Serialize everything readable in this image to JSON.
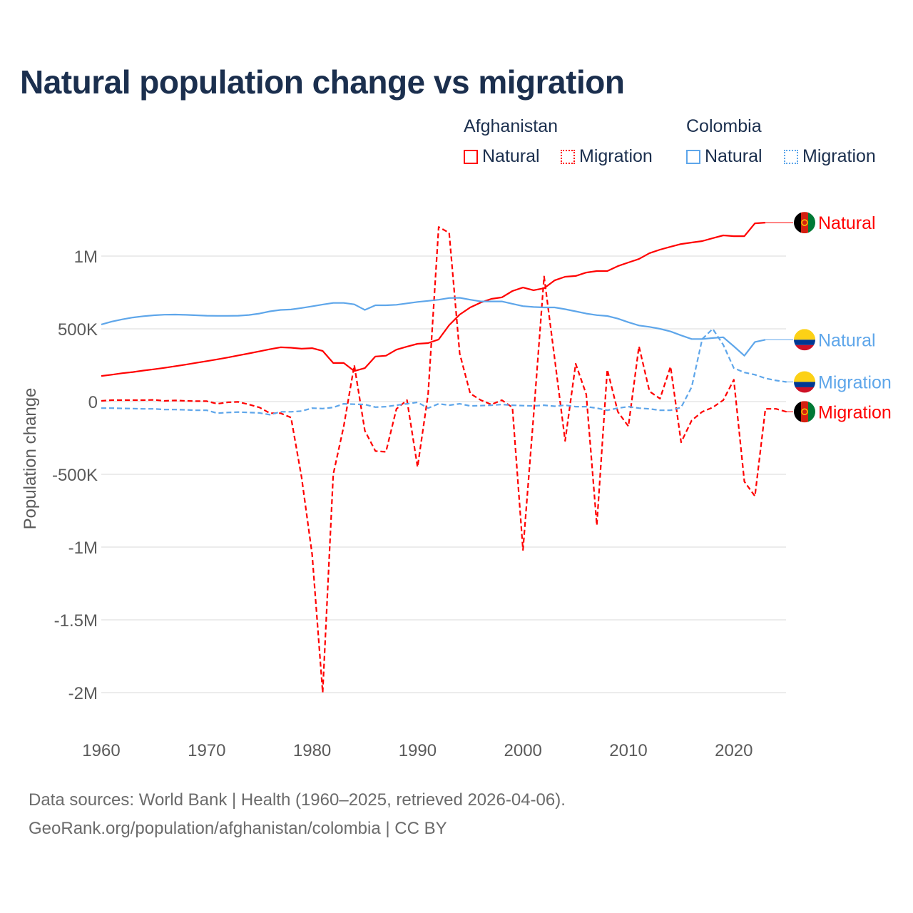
{
  "title": "Natural population change vs migration",
  "legend": {
    "groups": [
      {
        "name": "Afghanistan",
        "items": [
          "Natural",
          "Migration"
        ]
      },
      {
        "name": "Colombia",
        "items": [
          "Natural",
          "Migration"
        ]
      }
    ]
  },
  "colors": {
    "afghanistan": "#ff0000",
    "colombia": "#5ea6ea"
  },
  "footer": {
    "line1": "Data sources: World Bank | Health (1960–2025, retrieved 2026-04-06).",
    "line2": "GeoRank.org/population/afghanistan/colombia | CC BY"
  },
  "chart_data": {
    "type": "line",
    "title": "Natural population change vs migration",
    "xlabel": "",
    "ylabel": "Population change",
    "xlim": [
      1960,
      2025
    ],
    "ylim": [
      -2000000,
      1250000
    ],
    "x_ticks": [
      "1960",
      "1970",
      "1980",
      "1990",
      "2000",
      "2010",
      "2020"
    ],
    "y_ticks": [
      {
        "value": 1000000,
        "label": "1M"
      },
      {
        "value": 500000,
        "label": "500K"
      },
      {
        "value": 0,
        "label": "0"
      },
      {
        "value": -500000,
        "label": "-500K"
      },
      {
        "value": -1000000,
        "label": "-1M"
      },
      {
        "value": -1500000,
        "label": "-1.5M"
      },
      {
        "value": -2000000,
        "label": "-2M"
      }
    ],
    "grid": true,
    "legend_position": "top-right",
    "series": [
      {
        "name": "Afghanistan Natural",
        "country": "afghanistan",
        "end_label": "Natural",
        "style": "solid",
        "start_year": 1960,
        "values_millions": [
          0.176,
          0.185,
          0.195,
          0.203,
          0.213,
          0.222,
          0.232,
          0.243,
          0.254,
          0.266,
          0.278,
          0.29,
          0.303,
          0.317,
          0.331,
          0.345,
          0.36,
          0.373,
          0.37,
          0.363,
          0.367,
          0.348,
          0.265,
          0.265,
          0.21,
          0.23,
          0.31,
          0.315,
          0.357,
          0.378,
          0.397,
          0.402,
          0.427,
          0.525,
          0.598,
          0.647,
          0.681,
          0.706,
          0.716,
          0.76,
          0.784,
          0.765,
          0.779,
          0.833,
          0.858,
          0.863,
          0.887,
          0.897,
          0.897,
          0.931,
          0.956,
          0.98,
          1.02,
          1.044,
          1.064,
          1.083,
          1.093,
          1.103,
          1.123,
          1.142,
          1.137,
          1.137,
          1.225,
          1.23
        ]
      },
      {
        "name": "Afghanistan Migration",
        "country": "afghanistan",
        "end_label": "Migration",
        "style": "dashed",
        "start_year": 1960,
        "values_millions": [
          0.005,
          0.01,
          0.01,
          0.01,
          0.01,
          0.012,
          0.005,
          0.008,
          0.005,
          0.003,
          0.003,
          -0.015,
          -0.005,
          -0.002,
          -0.02,
          -0.04,
          -0.08,
          -0.08,
          -0.11,
          -0.52,
          -1.05,
          -2.0,
          -0.5,
          -0.17,
          0.25,
          -0.2,
          -0.34,
          -0.345,
          -0.05,
          0.01,
          -0.45,
          0.05,
          1.2,
          1.16,
          0.33,
          0.055,
          0.01,
          -0.02,
          0.01,
          -0.04,
          -1.02,
          -0.1,
          0.86,
          0.3,
          -0.27,
          0.26,
          0.05,
          -0.85,
          0.22,
          -0.07,
          -0.17,
          0.38,
          0.07,
          0.02,
          0.24,
          -0.28,
          -0.13,
          -0.07,
          -0.04,
          0.01,
          0.15,
          -0.55,
          -0.65,
          -0.05,
          -0.05,
          -0.07
        ]
      },
      {
        "name": "Colombia Natural",
        "country": "colombia",
        "end_label": "Natural",
        "style": "solid",
        "start_year": 1960,
        "values_millions": [
          0.53,
          0.55,
          0.565,
          0.578,
          0.587,
          0.593,
          0.597,
          0.598,
          0.596,
          0.593,
          0.59,
          0.589,
          0.589,
          0.59,
          0.595,
          0.605,
          0.62,
          0.63,
          0.633,
          0.643,
          0.655,
          0.667,
          0.678,
          0.678,
          0.668,
          0.63,
          0.662,
          0.662,
          0.665,
          0.675,
          0.685,
          0.692,
          0.7,
          0.712,
          0.713,
          0.7,
          0.688,
          0.688,
          0.688,
          0.672,
          0.656,
          0.65,
          0.647,
          0.647,
          0.635,
          0.62,
          0.605,
          0.594,
          0.588,
          0.57,
          0.545,
          0.523,
          0.513,
          0.5,
          0.482,
          0.455,
          0.43,
          0.43,
          0.437,
          0.442,
          0.38,
          0.315,
          0.41,
          0.425
        ]
      },
      {
        "name": "Colombia Migration",
        "country": "colombia",
        "end_label": "Migration",
        "style": "dashed",
        "start_year": 1960,
        "values_millions": [
          -0.045,
          -0.045,
          -0.047,
          -0.048,
          -0.05,
          -0.05,
          -0.055,
          -0.055,
          -0.057,
          -0.06,
          -0.06,
          -0.08,
          -0.075,
          -0.072,
          -0.075,
          -0.078,
          -0.09,
          -0.07,
          -0.07,
          -0.065,
          -0.045,
          -0.048,
          -0.04,
          -0.015,
          -0.018,
          -0.02,
          -0.038,
          -0.035,
          -0.025,
          -0.015,
          -0.005,
          -0.045,
          -0.015,
          -0.025,
          -0.015,
          -0.03,
          -0.028,
          -0.025,
          -0.02,
          -0.025,
          -0.028,
          -0.03,
          -0.025,
          -0.032,
          -0.025,
          -0.035,
          -0.035,
          -0.045,
          -0.06,
          -0.045,
          -0.035,
          -0.045,
          -0.05,
          -0.06,
          -0.06,
          -0.04,
          0.1,
          0.43,
          0.5,
          0.39,
          0.23,
          0.2,
          0.185,
          0.16,
          0.145,
          0.135
        ]
      }
    ]
  }
}
